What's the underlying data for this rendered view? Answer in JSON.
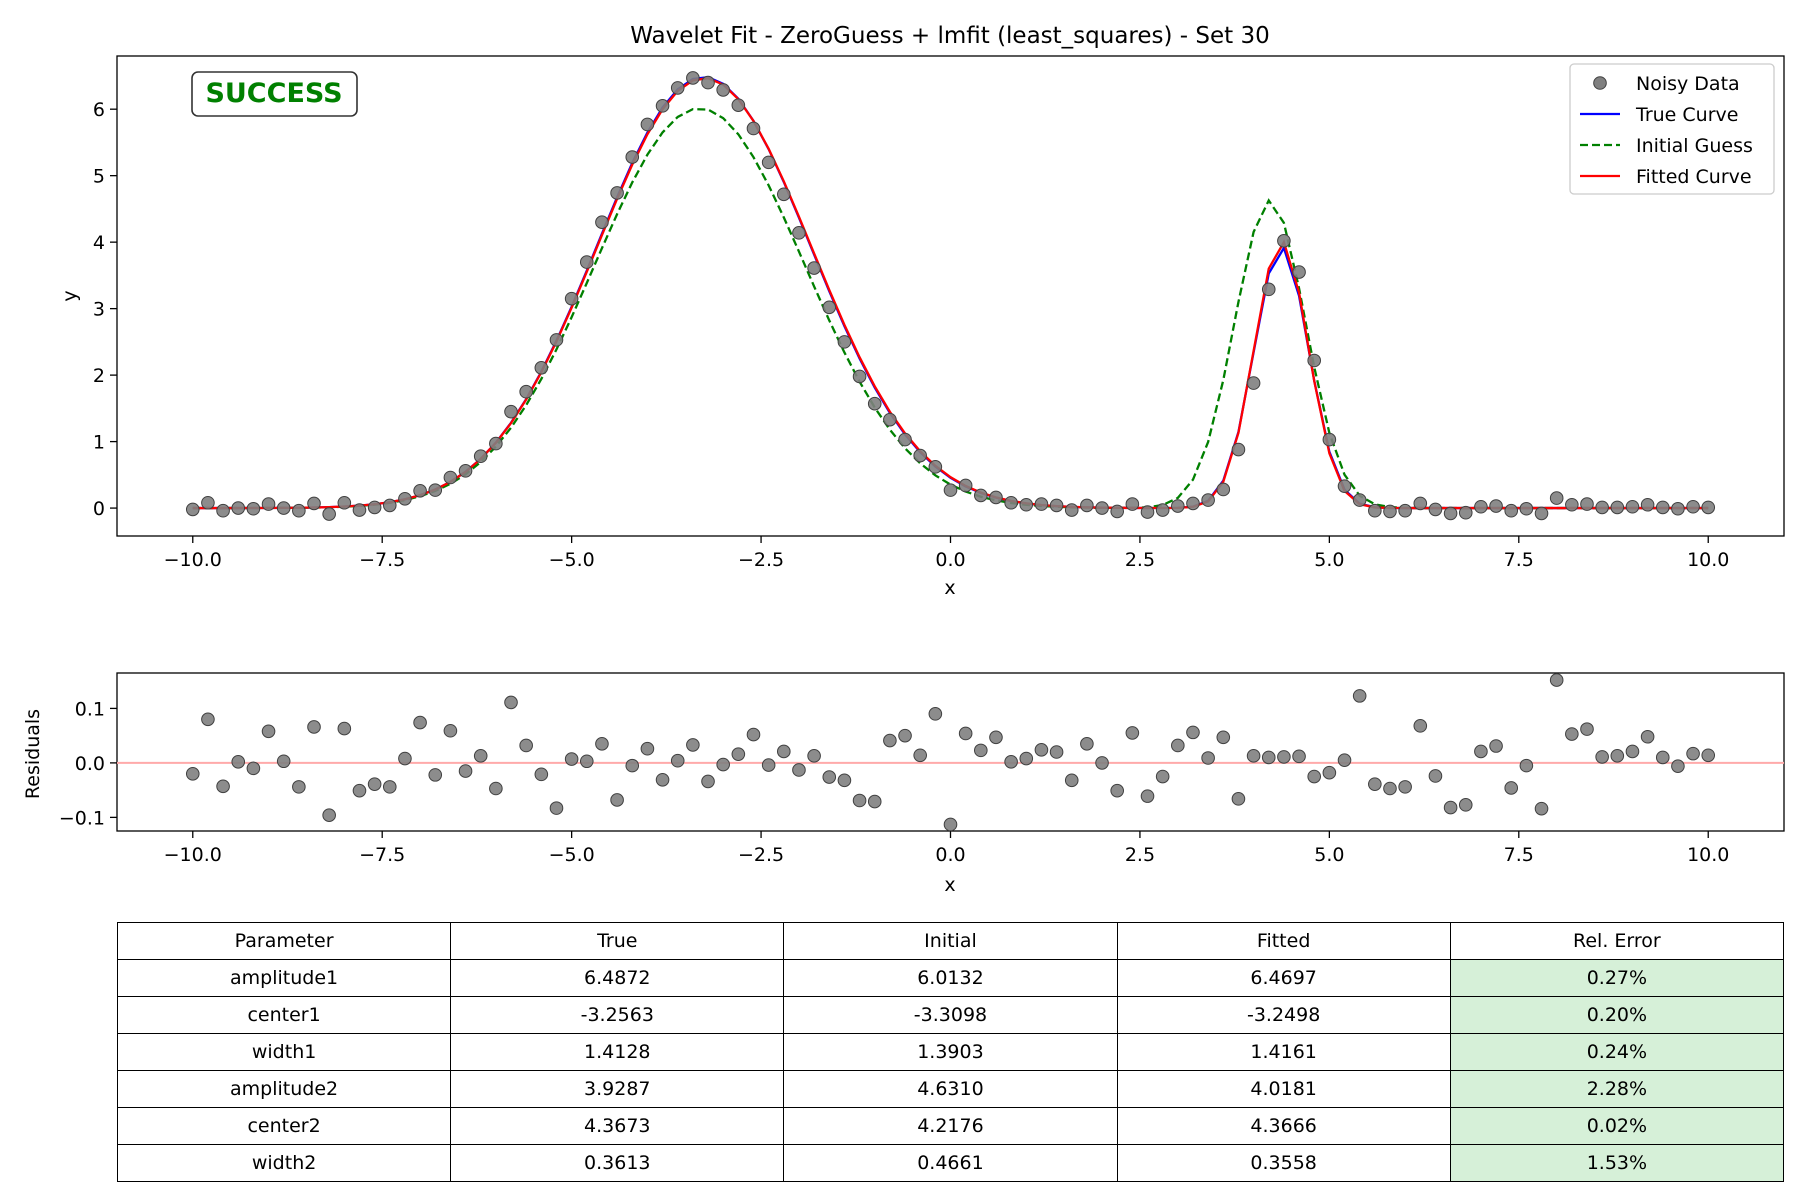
{
  "colors": {
    "noisy_data": "#808080",
    "true_curve": "#0000ff",
    "initial_guess": "#008000",
    "fitted_curve": "#ff0000",
    "zero_line": "#ffaaaa",
    "success": "#008000",
    "error_cell": "#d6f0d8"
  },
  "chart_data": [
    {
      "type": "line",
      "title": "Wavelet Fit - ZeroGuess + lmfit (least_squares) - Set 30",
      "xlabel": "x",
      "ylabel": "y",
      "xlim": [
        -11,
        11
      ],
      "ylim": [
        -0.42,
        6.8
      ],
      "xticks": [
        -10,
        -7.5,
        -5,
        -2.5,
        0,
        2.5,
        5,
        7.5,
        10
      ],
      "xtick_labels": [
        "−10.0",
        "−7.5",
        "−5.0",
        "−2.5",
        "0.0",
        "2.5",
        "5.0",
        "7.5",
        "10.0"
      ],
      "yticks": [
        0,
        1,
        2,
        3,
        4,
        5,
        6
      ],
      "ytick_labels": [
        "0",
        "1",
        "2",
        "3",
        "4",
        "5",
        "6"
      ],
      "badge": "SUCCESS",
      "legend_position": "top-right",
      "series": [
        {
          "name": "Noisy Data",
          "kind": "scatter",
          "color": "#808080",
          "x": [
            -10.0,
            -9.8,
            -9.6,
            -9.4,
            -9.2,
            -9.0,
            -8.8,
            -8.6,
            -8.4,
            -8.2,
            -8.0,
            -7.8,
            -7.6,
            -7.4,
            -7.2,
            -7.0,
            -6.8,
            -6.6,
            -6.4,
            -6.2,
            -6.0,
            -5.8,
            -5.6,
            -5.4,
            -5.2,
            -5.0,
            -4.8,
            -4.6,
            -4.4,
            -4.2,
            -4.0,
            -3.8,
            -3.6,
            -3.4,
            -3.2,
            -3.0,
            -2.8,
            -2.6,
            -2.4,
            -2.2,
            -2.0,
            -1.8,
            -1.6,
            -1.4,
            -1.2,
            -1.0,
            -0.8,
            -0.6,
            -0.4,
            -0.2,
            0.0,
            0.2,
            0.4,
            0.6,
            0.8,
            1.0,
            1.2,
            1.4,
            1.6,
            1.8,
            2.0,
            2.2,
            2.4,
            2.6,
            2.8,
            3.0,
            3.2,
            3.4,
            3.6,
            3.8,
            4.0,
            4.2,
            4.4,
            4.6,
            4.8,
            5.0,
            5.2,
            5.4,
            5.6,
            5.8,
            6.0,
            6.2,
            6.4,
            6.6,
            6.8,
            7.0,
            7.2,
            7.4,
            7.6,
            7.8,
            8.0,
            8.2,
            8.4,
            8.6,
            8.8,
            9.0,
            9.2,
            9.4,
            9.6,
            9.8,
            10.0
          ],
          "y": [
            -0.02,
            0.08,
            -0.04,
            0.0,
            -0.01,
            0.06,
            0.0,
            -0.04,
            0.07,
            -0.09,
            0.08,
            -0.03,
            0.01,
            0.04,
            0.14,
            0.26,
            0.27,
            0.46,
            0.56,
            0.78,
            0.97,
            1.45,
            1.75,
            2.11,
            2.53,
            3.15,
            3.7,
            4.3,
            4.74,
            5.28,
            5.77,
            6.05,
            6.32,
            6.47,
            6.4,
            6.29,
            6.06,
            5.71,
            5.2,
            4.72,
            4.14,
            3.61,
            3.02,
            2.5,
            1.98,
            1.57,
            1.33,
            1.03,
            0.79,
            0.62,
            0.27,
            0.34,
            0.19,
            0.16,
            0.08,
            0.05,
            0.06,
            0.04,
            -0.03,
            0.04,
            0.0,
            -0.05,
            0.06,
            -0.06,
            -0.03,
            0.03,
            0.07,
            0.12,
            0.28,
            0.88,
            1.88,
            3.29,
            4.02,
            3.55,
            2.22,
            1.03,
            0.33,
            0.12,
            -0.04,
            -0.05,
            -0.04,
            0.07,
            -0.02,
            -0.08,
            -0.07,
            0.02,
            0.03,
            -0.04,
            -0.01,
            -0.08,
            0.15,
            0.05,
            0.06,
            0.01,
            0.01,
            0.02,
            0.05,
            0.01,
            -0.01,
            0.02,
            0.01
          ]
        },
        {
          "name": "True Curve",
          "kind": "line",
          "color": "#0000ff",
          "dash": "solid",
          "amplitude1": 6.4872,
          "center1": -3.2563,
          "width1": 1.4128,
          "amplitude2": 3.9287,
          "center2": 4.3673,
          "width2": 0.3613
        },
        {
          "name": "Initial Guess",
          "kind": "line",
          "color": "#008000",
          "dash": "dashed",
          "amplitude1": 6.0132,
          "center1": -3.3098,
          "width1": 1.3903,
          "amplitude2": 4.631,
          "center2": 4.2176,
          "width2": 0.4661
        },
        {
          "name": "Fitted Curve",
          "kind": "line",
          "color": "#ff0000",
          "dash": "solid",
          "amplitude1": 6.4697,
          "center1": -3.2498,
          "width1": 1.4161,
          "amplitude2": 4.0181,
          "center2": 4.3666,
          "width2": 0.3558
        }
      ]
    },
    {
      "type": "scatter",
      "title": "",
      "xlabel": "x",
      "ylabel": "Residuals",
      "xlim": [
        -11,
        11
      ],
      "ylim": [
        -0.125,
        0.165
      ],
      "xticks": [
        -10,
        -7.5,
        -5,
        -2.5,
        0,
        2.5,
        5,
        7.5,
        10
      ],
      "xtick_labels": [
        "−10.0",
        "−7.5",
        "−5.0",
        "−2.5",
        "0.0",
        "2.5",
        "5.0",
        "7.5",
        "10.0"
      ],
      "yticks": [
        -0.1,
        0.0,
        0.1
      ],
      "ytick_labels": [
        "−0.1",
        "0.0",
        "0.1"
      ],
      "zero_line": 0,
      "x": [
        -10.0,
        -9.8,
        -9.6,
        -9.4,
        -9.2,
        -9.0,
        -8.8,
        -8.6,
        -8.4,
        -8.2,
        -8.0,
        -7.8,
        -7.6,
        -7.4,
        -7.2,
        -7.0,
        -6.8,
        -6.6,
        -6.4,
        -6.2,
        -6.0,
        -5.8,
        -5.6,
        -5.4,
        -5.2,
        -5.0,
        -4.8,
        -4.6,
        -4.4,
        -4.2,
        -4.0,
        -3.8,
        -3.6,
        -3.4,
        -3.2,
        -3.0,
        -2.8,
        -2.6,
        -2.4,
        -2.2,
        -2.0,
        -1.8,
        -1.6,
        -1.4,
        -1.2,
        -1.0,
        -0.8,
        -0.6,
        -0.4,
        -0.2,
        0.0,
        0.2,
        0.4,
        0.6,
        0.8,
        1.0,
        1.2,
        1.4,
        1.6,
        1.8,
        2.0,
        2.2,
        2.4,
        2.6,
        2.8,
        3.0,
        3.2,
        3.4,
        3.6,
        3.8,
        4.0,
        4.2,
        4.4,
        4.6,
        4.8,
        5.0,
        5.2,
        5.4,
        5.6,
        5.8,
        6.0,
        6.2,
        6.4,
        6.6,
        6.8,
        7.0,
        7.2,
        7.4,
        7.6,
        7.8,
        8.0,
        8.2,
        8.4,
        8.6,
        8.8,
        9.0,
        9.2,
        9.4,
        9.6,
        9.8,
        10.0
      ],
      "y": [
        -0.02,
        0.08,
        -0.043,
        0.002,
        -0.01,
        0.058,
        0.003,
        -0.044,
        0.066,
        -0.096,
        0.063,
        -0.051,
        -0.039,
        -0.044,
        0.008,
        0.074,
        -0.022,
        0.059,
        -0.015,
        0.013,
        -0.047,
        0.111,
        0.032,
        -0.021,
        -0.083,
        0.007,
        0.003,
        0.035,
        -0.068,
        -0.005,
        0.026,
        -0.031,
        0.004,
        0.033,
        -0.034,
        -0.003,
        0.016,
        0.052,
        -0.004,
        0.021,
        -0.013,
        0.013,
        -0.026,
        -0.032,
        -0.069,
        -0.071,
        0.041,
        0.05,
        0.014,
        0.09,
        -0.113,
        0.054,
        0.023,
        0.047,
        0.002,
        0.008,
        0.024,
        0.02,
        -0.032,
        0.035,
        0.0,
        -0.051,
        0.055,
        -0.061,
        -0.025,
        0.032,
        0.056,
        0.009,
        0.047,
        -0.066,
        0.013,
        0.01,
        0.011,
        0.012,
        -0.025,
        -0.018,
        0.005,
        0.123,
        -0.039,
        -0.047,
        -0.044,
        0.068,
        -0.024,
        -0.082,
        -0.077,
        0.021,
        0.031,
        -0.046,
        -0.005,
        -0.084,
        0.152,
        0.053,
        0.062,
        0.011,
        0.013,
        0.021,
        0.048,
        0.01,
        -0.006,
        0.017,
        0.014
      ]
    },
    {
      "type": "table",
      "columns": [
        "Parameter",
        "True",
        "Initial",
        "Fitted",
        "Rel. Error"
      ],
      "rows": [
        [
          "amplitude1",
          "6.4872",
          "6.0132",
          "6.4697",
          "0.27%"
        ],
        [
          "center1",
          "-3.2563",
          "-3.3098",
          "-3.2498",
          "0.20%"
        ],
        [
          "width1",
          "1.4128",
          "1.3903",
          "1.4161",
          "0.24%"
        ],
        [
          "amplitude2",
          "3.9287",
          "4.6310",
          "4.0181",
          "2.28%"
        ],
        [
          "center2",
          "4.3673",
          "4.2176",
          "4.3666",
          "0.02%"
        ],
        [
          "width2",
          "0.3613",
          "0.4661",
          "0.3558",
          "1.53%"
        ]
      ]
    }
  ]
}
